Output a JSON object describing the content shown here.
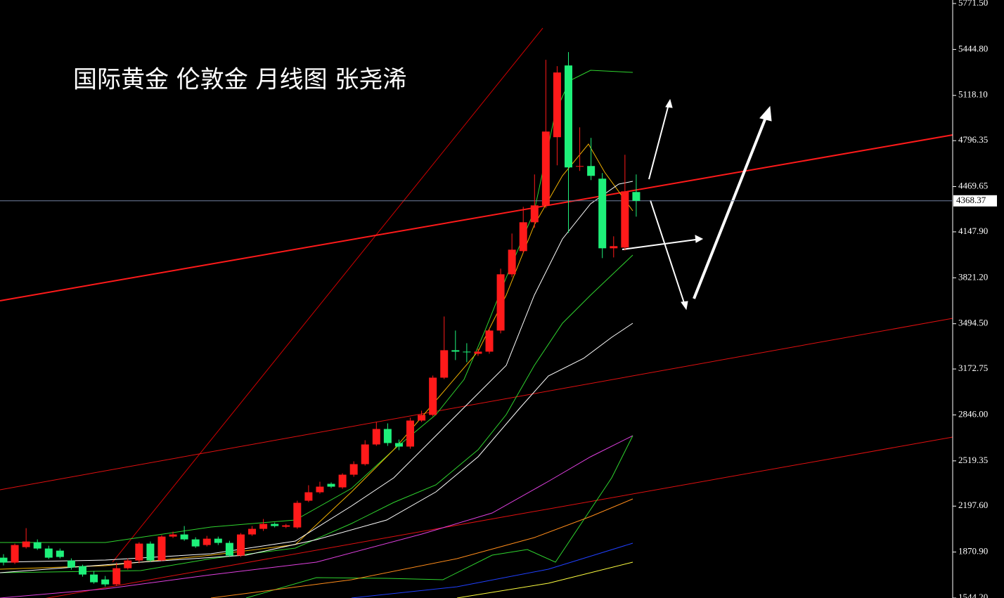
{
  "chart_data": {
    "type": "candlestick",
    "title": "国际黄金 伦敦金 月线图 张尧浠",
    "up_color": "#ff1a1a",
    "down_color": "#1ef07a",
    "ylim": [
      1544.2,
      5771.5
    ],
    "yticks": [
      {
        "value": 1544.2,
        "label": "1544.20"
      },
      {
        "value": 1870.9,
        "label": "1870.90"
      },
      {
        "value": 2197.6,
        "label": "2197.60"
      },
      {
        "value": 2519.35,
        "label": "2519.35"
      },
      {
        "value": 2846,
        "label": "2846.00"
      },
      {
        "value": 3172.75,
        "label": "3172.75"
      },
      {
        "value": 3494.5,
        "label": "3494.50"
      },
      {
        "value": 3821.2,
        "label": "3821.20"
      },
      {
        "value": 4147.9,
        "label": "4147.90"
      },
      {
        "value": 4469.65,
        "label": "4469.65"
      },
      {
        "value": 4796.35,
        "label": "4796.35"
      },
      {
        "value": 5118.1,
        "label": "5118.10"
      },
      {
        "value": 5444.8,
        "label": "5444.80"
      },
      {
        "value": 5771.5,
        "label": "5771.50"
      }
    ],
    "current_price": 4368.37,
    "open": [
      1831,
      1796,
      1906,
      1941,
      1896,
      1881,
      1811,
      1771,
      1711,
      1676,
      1641,
      1756,
      1811,
      1931,
      1811,
      1981,
      1996,
      1961,
      1921,
      1966,
      1936,
      1846,
      1996,
      2036,
      2071,
      2051,
      2046,
      2236,
      2296,
      2356,
      2331,
      2421,
      2496,
      2636,
      2746,
      2646,
      2621,
      2806,
      2846,
      3111,
      3306,
      3296,
      3281,
      3296,
      3446,
      3846,
      4011,
      4216,
      4336,
      4821,
      5331,
      4611,
      4616,
      4526,
      4031,
      4036,
      4431
    ],
    "high": [
      1856,
      1931,
      2041,
      1961,
      1916,
      1896,
      1826,
      1781,
      1736,
      1701,
      1796,
      1826,
      1941,
      1946,
      1991,
      2016,
      2056,
      1976,
      1986,
      1981,
      1951,
      2006,
      2056,
      2106,
      2081,
      2071,
      2236,
      2346,
      2371,
      2366,
      2431,
      2516,
      2666,
      2796,
      2786,
      2671,
      2826,
      2876,
      3126,
      3546,
      3446,
      3356,
      3316,
      3461,
      3886,
      4136,
      4326,
      4556,
      5371,
      5326,
      5426,
      4891,
      4816,
      4566,
      4116,
      4696,
      4556
    ],
    "low": [
      1776,
      1786,
      1896,
      1886,
      1821,
      1826,
      1746,
      1696,
      1646,
      1626,
      1631,
      1746,
      1791,
      1801,
      1806,
      1971,
      1951,
      1901,
      1911,
      1921,
      1836,
      1836,
      1986,
      2021,
      2046,
      2041,
      2036,
      2226,
      2286,
      2326,
      2321,
      2406,
      2486,
      2626,
      2626,
      2596,
      2606,
      2796,
      2836,
      3101,
      3236,
      3221,
      3266,
      3281,
      3426,
      3826,
      3996,
      4176,
      4316,
      4621,
      4141,
      4581,
      4516,
      3961,
      3966,
      4016,
      4256
    ],
    "close": [
      1796,
      1921,
      1946,
      1896,
      1831,
      1836,
      1761,
      1711,
      1656,
      1641,
      1756,
      1811,
      1931,
      1811,
      1981,
      1996,
      1961,
      1911,
      1966,
      1936,
      1846,
      1996,
      2036,
      2071,
      2056,
      2061,
      2221,
      2296,
      2336,
      2336,
      2421,
      2496,
      2636,
      2746,
      2646,
      2621,
      2806,
      2846,
      3111,
      3306,
      3296,
      3291,
      3296,
      3446,
      3846,
      4021,
      4216,
      4336,
      4861,
      5281,
      4606,
      4616,
      4546,
      4031,
      4046,
      4436,
      4368.37
    ]
  }
}
